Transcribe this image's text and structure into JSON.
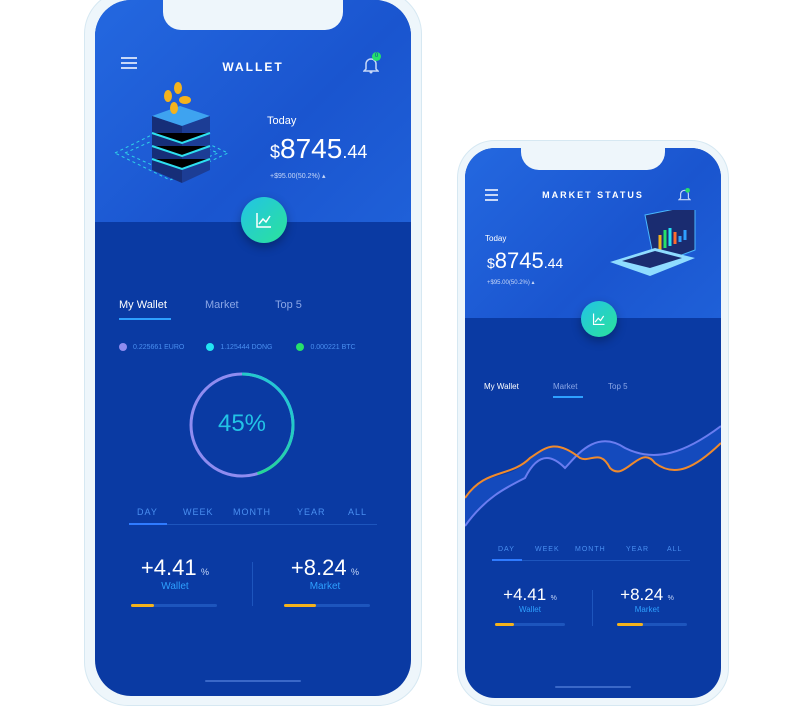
{
  "wallet_phone": {
    "title": "WALLET",
    "notification_count": "0",
    "today_label": "Today",
    "currency": "$",
    "amount_main": "8745",
    "amount_cents": ".44",
    "change": "+$95.00(50.2%)",
    "tabs": [
      {
        "label": "My Wallet",
        "active": true
      },
      {
        "label": "Market"
      },
      {
        "label": "Top 5"
      }
    ],
    "balances": [
      {
        "label": "0.225661 EURO",
        "color": "#8f8cf0"
      },
      {
        "label": "1.125444 DONG",
        "color": "#22e4f2"
      },
      {
        "label": "0.000221 BTC",
        "color": "#26e06a"
      }
    ],
    "progress_percent": 45,
    "progress_label": "45%",
    "ranges": [
      "DAY",
      "WEEK",
      "MONTH",
      "YEAR",
      "ALL"
    ],
    "active_range": "DAY",
    "stats": [
      {
        "value": "+4.41",
        "unit": "%",
        "label": "Wallet",
        "fill": 0.27
      },
      {
        "value": "+8.24",
        "unit": "%",
        "label": "Market",
        "fill": 0.37
      }
    ]
  },
  "market_phone": {
    "title": "MARKET STATUS",
    "today_label": "Today",
    "currency": "$",
    "amount_main": "8745",
    "amount_cents": ".44",
    "change": "+$95.00(50.2%)",
    "tabs": [
      {
        "label": "My Wallet"
      },
      {
        "label": "Market",
        "active": true
      },
      {
        "label": "Top 5"
      }
    ],
    "ranges": [
      "DAY",
      "WEEK",
      "MONTH",
      "YEAR",
      "ALL"
    ],
    "active_range": "DAY",
    "stats": [
      {
        "value": "+4.41",
        "unit": "%",
        "label": "Wallet",
        "fill": 0.27
      },
      {
        "value": "+8.24",
        "unit": "%",
        "label": "Market",
        "fill": 0.37
      }
    ]
  }
}
